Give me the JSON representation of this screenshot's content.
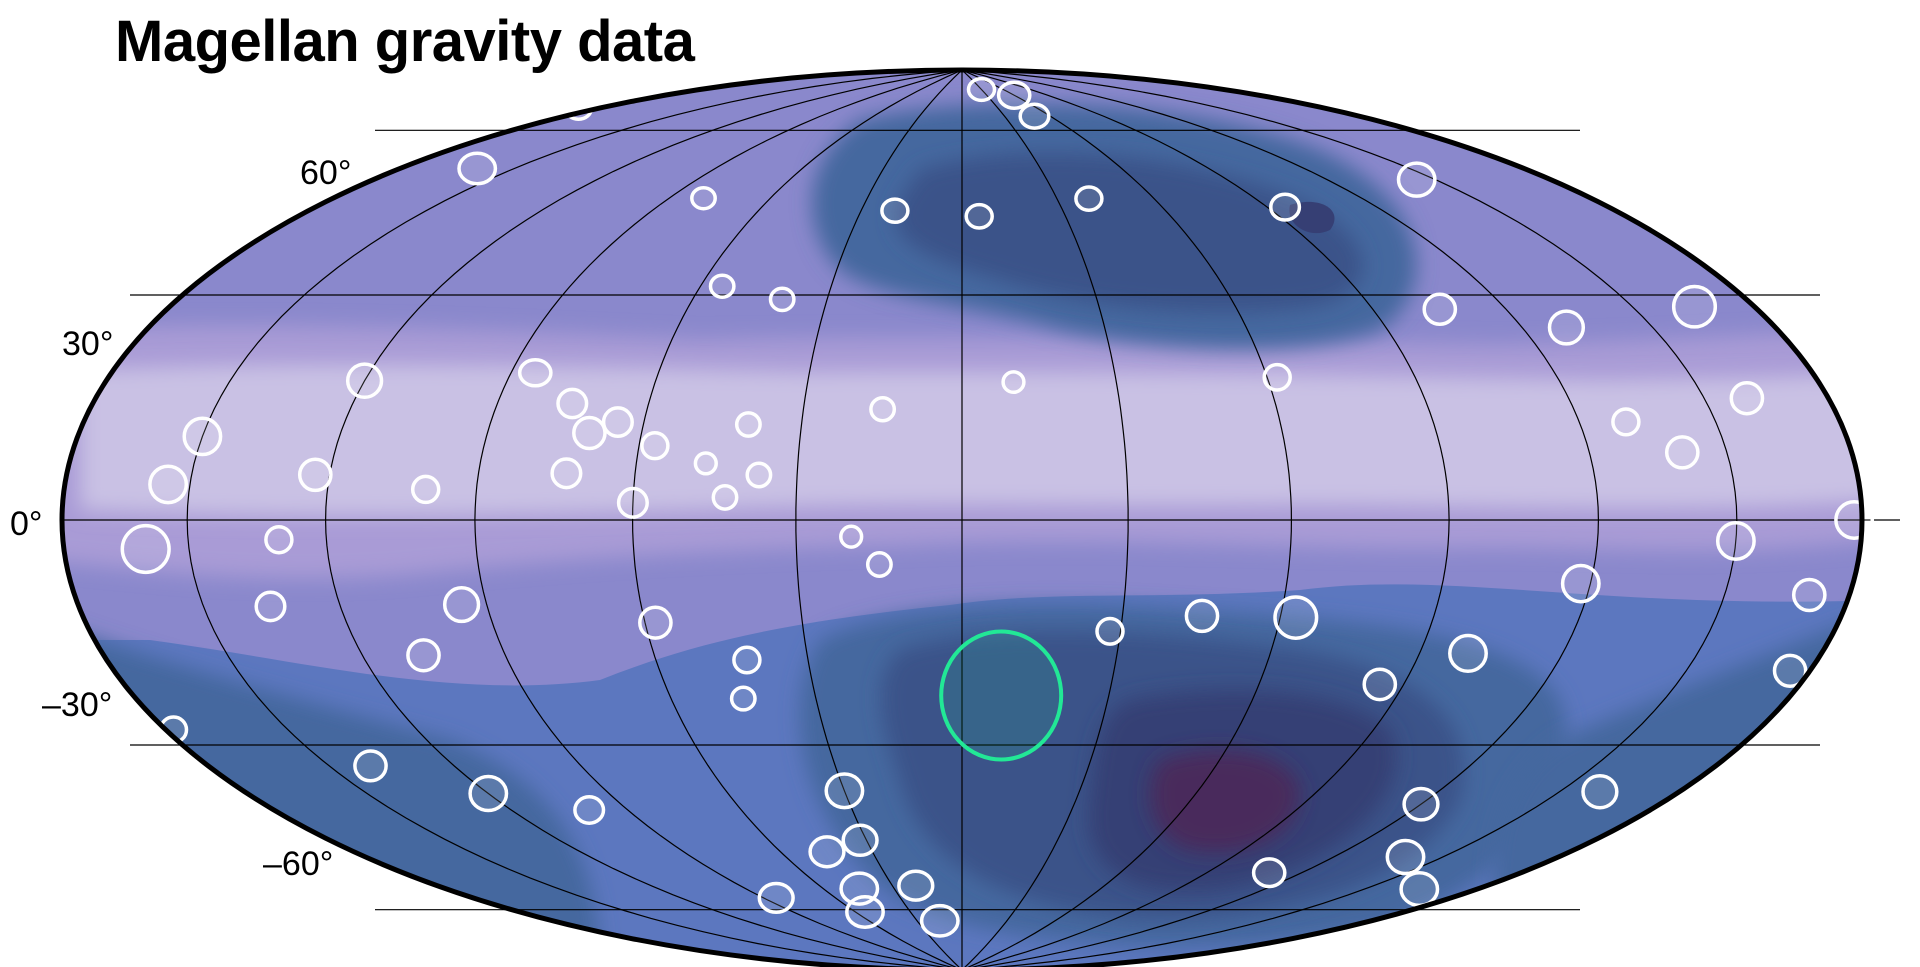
{
  "title": "Magellan gravity data",
  "latitude_labels": [
    "60°",
    "30°",
    "0°",
    "–30°",
    "–60°"
  ],
  "colors": {
    "outline": "#000000",
    "grid": "#000000",
    "crater": "#ffffff",
    "highlight": "#22e896",
    "band_high": "#c9c1e4",
    "band_mid_high": "#a99bd6",
    "band_mid": "#8a88cc",
    "band_low": "#5c77bf",
    "band_lower": "#45679f",
    "band_lowest": "#3a5289",
    "band_deep": "#363f74",
    "band_deepest": "#4a2a5c"
  },
  "projection": "hammer",
  "graticule": {
    "latitudes_deg": [
      -60,
      -30,
      0,
      30,
      60
    ],
    "meridian_spacing_deg": 30
  },
  "highlighted_crater": {
    "lon_deg": 8,
    "lat_deg": -32,
    "color": "#22e896"
  }
}
